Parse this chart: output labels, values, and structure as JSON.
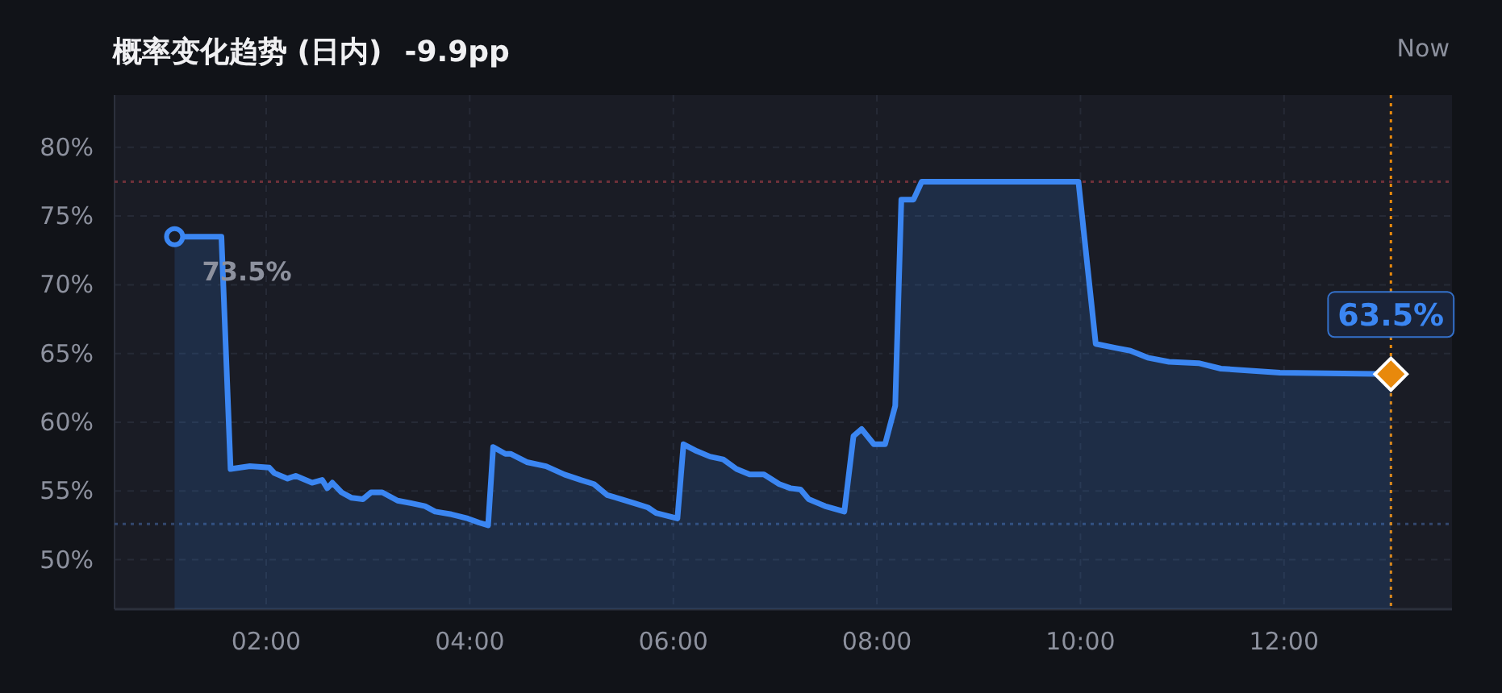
{
  "chart_data": {
    "type": "area",
    "title": "概率变化趋势 (日内)",
    "subtitle": "-9.9pp",
    "x": [
      1.1,
      1.56,
      1.65,
      1.84,
      2.03,
      2.08,
      2.21,
      2.29,
      2.45,
      2.55,
      2.6,
      2.65,
      2.74,
      2.84,
      2.95,
      3.03,
      3.14,
      3.29,
      3.43,
      3.56,
      3.66,
      3.82,
      3.98,
      4.09,
      4.18,
      4.23,
      4.35,
      4.4,
      4.56,
      4.75,
      4.93,
      5.09,
      5.22,
      5.35,
      5.49,
      5.62,
      5.75,
      5.83,
      6.04,
      6.1,
      6.23,
      6.36,
      6.49,
      6.62,
      6.75,
      6.89,
      7.04,
      7.15,
      7.25,
      7.33,
      7.49,
      7.68,
      7.77,
      7.85,
      7.97,
      8.08,
      8.18,
      8.24,
      8.36,
      8.44,
      9.98,
      10.15,
      10.35,
      10.49,
      10.66,
      10.87,
      11.16,
      11.38,
      11.96,
      13.05
    ],
    "series": [
      {
        "color": "#3b86f2",
        "values": [
          73.5,
          73.5,
          56.6,
          56.8,
          56.7,
          56.3,
          55.9,
          56.1,
          55.6,
          55.8,
          55.2,
          55.6,
          54.9,
          54.5,
          54.4,
          54.9,
          54.9,
          54.3,
          54.1,
          53.9,
          53.5,
          53.3,
          53.0,
          52.7,
          52.5,
          58.2,
          57.7,
          57.7,
          57.1,
          56.8,
          56.2,
          55.8,
          55.5,
          54.7,
          54.4,
          54.1,
          53.8,
          53.4,
          53.0,
          58.4,
          57.9,
          57.5,
          57.3,
          56.6,
          56.2,
          56.2,
          55.5,
          55.2,
          55.1,
          54.4,
          53.9,
          53.5,
          59.0,
          59.5,
          58.4,
          58.4,
          61.2,
          76.2,
          76.2,
          77.5,
          77.5,
          65.7,
          65.4,
          65.2,
          64.7,
          64.4,
          64.3,
          63.9,
          63.6,
          63.5
        ]
      }
    ],
    "xlim": [
      0.51,
      13.65
    ],
    "ylim": [
      46.4,
      83.8
    ],
    "xticks": [
      {
        "value": 2,
        "label": "02:00"
      },
      {
        "value": 4,
        "label": "04:00"
      },
      {
        "value": 6,
        "label": "06:00"
      },
      {
        "value": 8,
        "label": "08:00"
      },
      {
        "value": 10,
        "label": "10:00"
      },
      {
        "value": 12,
        "label": "12:00"
      }
    ],
    "yticks": [
      {
        "value": 50,
        "label": "50%"
      },
      {
        "value": 55,
        "label": "55%"
      },
      {
        "value": 60,
        "label": "60%"
      },
      {
        "value": 65,
        "label": "65%"
      },
      {
        "value": 70,
        "label": "70%"
      },
      {
        "value": 75,
        "label": "75%"
      },
      {
        "value": 80,
        "label": "80%"
      }
    ],
    "grid": true,
    "marker": "none",
    "line_style": "solid",
    "ref_lines": [
      {
        "axis": "y",
        "value": 77.5,
        "color": "#6e3039",
        "line_style": "dotted"
      },
      {
        "axis": "y",
        "value": 52.6,
        "color": "#33476e",
        "line_style": "dotted"
      },
      {
        "axis": "x",
        "value": 13.05,
        "label": "Now",
        "color": "#e8890c",
        "line_style": "dotted"
      }
    ],
    "annotations": [
      {
        "text": "73.5%",
        "x": 1.1,
        "y": 73.5
      },
      {
        "text": "63.5%",
        "x": 13.05,
        "y": 63.5
      }
    ]
  }
}
